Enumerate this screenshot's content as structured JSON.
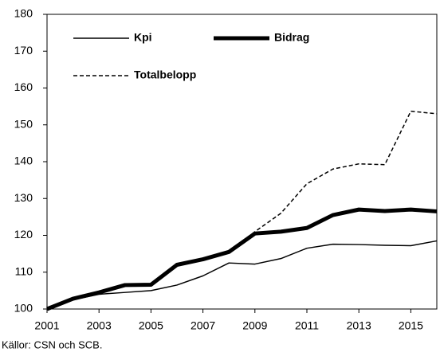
{
  "chart_data": {
    "type": "line",
    "x": [
      2001,
      2002,
      2003,
      2004,
      2005,
      2006,
      2007,
      2008,
      2009,
      2010,
      2011,
      2012,
      2013,
      2014,
      2015,
      2016
    ],
    "series": [
      {
        "name": "Kpi",
        "color": "#000000",
        "width": 1.5,
        "dash": false,
        "values": [
          100,
          102.5,
          104,
          104.5,
          105,
          106.5,
          109,
          112.5,
          112.2,
          113.7,
          116.5,
          117.6,
          117.5,
          117.3,
          117.2,
          118.5
        ]
      },
      {
        "name": "Bidrag",
        "color": "#000000",
        "width": 5,
        "dash": false,
        "values": [
          100,
          102.8,
          104.5,
          106.5,
          106.6,
          112,
          113.5,
          115.5,
          120.5,
          121,
          122,
          125.5,
          127,
          126.6,
          127,
          126.5
        ]
      },
      {
        "name": "Totalbelopp",
        "color": "#000000",
        "width": 1.5,
        "dash": true,
        "values": [
          100,
          102.8,
          104.5,
          106.5,
          106.6,
          112,
          113.5,
          115.5,
          121,
          126,
          134,
          138,
          139.4,
          139.2,
          153.7,
          153
        ]
      }
    ],
    "xlim": [
      2001,
      2016
    ],
    "xticks": [
      2001,
      2003,
      2005,
      2007,
      2009,
      2011,
      2013,
      2015
    ],
    "ylim": [
      100,
      180
    ],
    "yticks": [
      100,
      110,
      120,
      130,
      140,
      150,
      160,
      170,
      180
    ],
    "grid": false,
    "source": "Källor: CSN och SCB."
  }
}
